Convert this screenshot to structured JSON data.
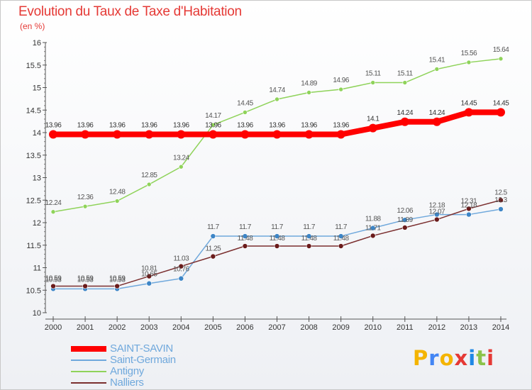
{
  "page": {
    "title": "Evolution du Taux de Taxe d'Habitation",
    "unit": "(en %)",
    "logo": "Proxiti"
  },
  "chart_data": {
    "type": "line",
    "title": "Evolution du Taux de Taxe d'Habitation",
    "subtitle": "(en %)",
    "xlabel": "",
    "ylabel": "",
    "x": [
      "2000",
      "2001",
      "2002",
      "2003",
      "2004",
      "2005",
      "2006",
      "2007",
      "2008",
      "2009",
      "2010",
      "2011",
      "2012",
      "2013",
      "2014"
    ],
    "ylim": [
      10,
      16
    ],
    "yticks": [
      "10",
      "10.5",
      "11",
      "11.5",
      "12",
      "12.5",
      "13",
      "13.5",
      "14",
      "14.5",
      "15",
      "15.5",
      "16"
    ],
    "grid": false,
    "legend_position": "bottom-left",
    "series": [
      {
        "name": "SAINT-SAVIN",
        "color": "#ff0000",
        "values": [
          13.96,
          13.96,
          13.96,
          13.96,
          13.96,
          13.96,
          13.96,
          13.96,
          13.96,
          13.96,
          14.1,
          14.24,
          14.24,
          14.45,
          14.45
        ],
        "labels": [
          "13.96",
          "13.96",
          "13.96",
          "13.96",
          "13.96",
          "13.96",
          "13.96",
          "13.96",
          "13.96",
          "13.96",
          "14.1",
          "14.24",
          "14.24",
          "14.45",
          "14.45"
        ]
      },
      {
        "name": "Saint-Germain",
        "color": "#6fa8dc",
        "values": [
          10.53,
          10.53,
          10.53,
          10.65,
          10.76,
          11.7,
          11.7,
          11.7,
          11.7,
          11.7,
          11.88,
          12.06,
          12.18,
          12.18,
          12.3
        ],
        "labels": [
          "10.53",
          "10.53",
          "10.53",
          "10.65",
          "10.76",
          "11.7",
          "11.7",
          "11.7",
          "11.7",
          "11.7",
          "11.88",
          "12.06",
          "12.18",
          "12.18",
          "12.3"
        ]
      },
      {
        "name": "Antigny",
        "color": "#8fd35a",
        "values": [
          12.24,
          12.36,
          12.48,
          12.85,
          13.24,
          14.17,
          14.45,
          14.74,
          14.89,
          14.96,
          15.11,
          15.11,
          15.41,
          15.56,
          15.64
        ],
        "labels": [
          "12.24",
          "12.36",
          "12.48",
          "12.85",
          "13.24",
          "14.17",
          "14.45",
          "14.74",
          "14.89",
          "14.96",
          "15.11",
          "15.11",
          "15.41",
          "15.56",
          "15.64"
        ]
      },
      {
        "name": "Nalliers",
        "color": "#7b2f2f",
        "values": [
          10.59,
          10.59,
          10.59,
          10.81,
          11.03,
          11.25,
          11.48,
          11.48,
          11.48,
          11.48,
          11.71,
          11.89,
          12.07,
          12.31,
          12.5
        ],
        "labels": [
          "10.59",
          "10.59",
          "10.59",
          "10.81",
          "11.03",
          "11.25",
          "11.48",
          "11.48",
          "11.48",
          "11.48",
          "11.71",
          "11.89",
          "12.07",
          "12.31",
          "12.5"
        ]
      }
    ]
  }
}
